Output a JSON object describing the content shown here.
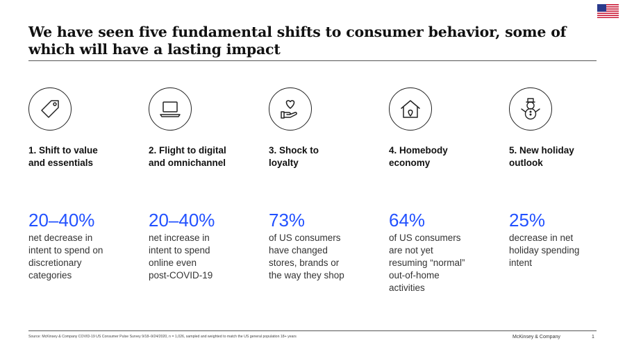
{
  "title": "We have seen five fundamental shifts to consumer behavior, some of which will have a lasting impact",
  "flag_icon": "us-flag-icon",
  "shifts": [
    {
      "icon": "price-tag-icon",
      "heading": "1. Shift to value\nand essentials",
      "stat": "20–40%",
      "description": "net decrease in\nintent to spend on\ndiscretionary\ncategories"
    },
    {
      "icon": "laptop-icon",
      "heading": "2. Flight to digital\nand omnichannel",
      "stat": "20–40%",
      "description": "net increase in\nintent to spend\nonline even\npost-COVID-19"
    },
    {
      "icon": "hand-heart-icon",
      "heading": "3. Shock to\nloyalty",
      "stat": "73%",
      "description": "of US consumers\nhave changed\nstores, brands or\nthe way they shop"
    },
    {
      "icon": "house-location-icon",
      "heading": "4. Homebody\neconomy",
      "stat": "64%",
      "description": "of US consumers\nare not yet\nresuming “normal”\nout-of-home\nactivities"
    },
    {
      "icon": "snowman-icon",
      "heading": "5. New holiday\noutlook",
      "stat": "25%",
      "description": "decrease in net\nholiday spending\nintent"
    }
  ],
  "footer": {
    "source": "Source: McKinsey & Company COVID-19 US Consumer Pulse Survey 9/18–9/24/2020, n = 1,026, sampled and weighted to match the US general population 18+ years",
    "brand": "McKinsey & Company",
    "page_number": "1"
  },
  "colors": {
    "accent": "#2251ff",
    "text": "#1a1a1a"
  }
}
